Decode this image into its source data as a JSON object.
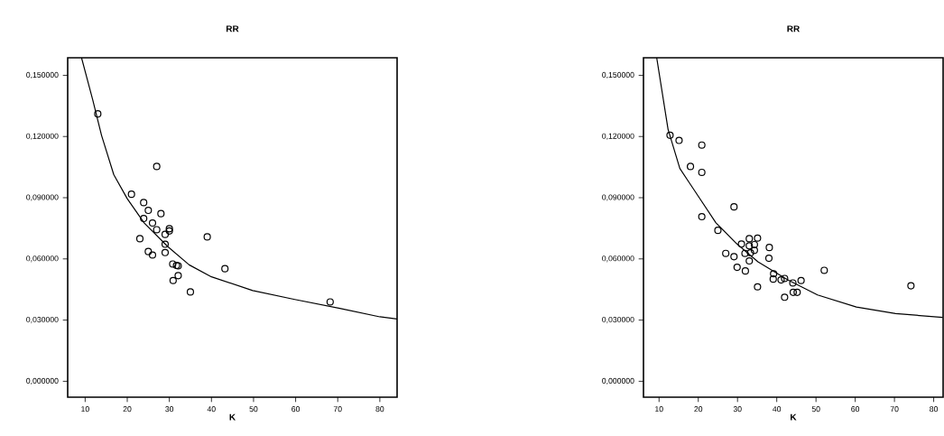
{
  "chart_data": [
    {
      "type": "scatter",
      "title": "RR",
      "xlabel": "K",
      "xlim": [
        5.85,
        84.1
      ],
      "ylim": [
        -0.0078,
        0.1586
      ],
      "xticks": [
        10,
        20,
        30,
        40,
        50,
        60,
        70,
        80
      ],
      "yticks": [
        {
          "value": 0,
          "label": "0,000000"
        },
        {
          "value": 0.03,
          "label": "0,030000"
        },
        {
          "value": 0.06,
          "label": "0,060000"
        },
        {
          "value": 0.09,
          "label": "0,090000"
        },
        {
          "value": 0.12,
          "label": "0,120000"
        },
        {
          "value": 0.15,
          "label": "0,150000"
        }
      ],
      "series": [
        {
          "type": "scatter",
          "color": "#000000",
          "marker": "circle",
          "x": [
            13.0,
            27.0,
            21.0,
            23.9,
            25.0,
            28.0,
            23.9,
            26.0,
            27.0,
            30.0,
            30.0,
            29.0,
            39.0,
            23.0,
            29.0,
            25.0,
            29.0,
            26.0,
            30.8,
            31.7,
            32.1,
            43.2,
            32.1,
            30.9,
            35.0,
            68.2
          ],
          "values": [
            0.1311,
            0.1053,
            0.0917,
            0.0876,
            0.0838,
            0.0822,
            0.0798,
            0.0776,
            0.0743,
            0.0748,
            0.0737,
            0.072,
            0.0708,
            0.0699,
            0.0672,
            0.0636,
            0.0631,
            0.0619,
            0.0575,
            0.0568,
            0.0566,
            0.0552,
            0.0518,
            0.0494,
            0.0438,
            0.0389
          ]
        },
        {
          "type": "line",
          "color": "#000000",
          "x": [
            9.14,
            11.8,
            13.9,
            16.8,
            20,
            24,
            29.7,
            34.7,
            40,
            49.8,
            59.8,
            70.5,
            80,
            84.1
          ],
          "values": [
            0.1586,
            0.138,
            0.1205,
            0.1013,
            0.0895,
            0.0777,
            0.0659,
            0.0571,
            0.0512,
            0.0445,
            0.0401,
            0.0357,
            0.0316,
            0.0305
          ]
        }
      ]
    },
    {
      "type": "scatter",
      "title": "RR",
      "xlabel": "K",
      "xlim": [
        6.03,
        82.4
      ],
      "ylim": [
        -0.0078,
        0.1586
      ],
      "xticks": [
        10,
        20,
        30,
        40,
        50,
        60,
        70,
        80
      ],
      "yticks": [
        {
          "value": 0,
          "label": "0,000000"
        },
        {
          "value": 0.03,
          "label": "0,030000"
        },
        {
          "value": 0.06,
          "label": "0,060000"
        },
        {
          "value": 0.09,
          "label": "0,090000"
        },
        {
          "value": 0.12,
          "label": "0,120000"
        },
        {
          "value": 0.15,
          "label": "0,150000"
        }
      ],
      "series": [
        {
          "type": "scatter",
          "color": "#000000",
          "marker": "circle",
          "x": [
            12.8,
            15.1,
            20.9,
            18.0,
            20.9,
            29.1,
            20.9,
            25.0,
            31.0,
            33.0,
            35.1,
            34.3,
            33.0,
            38.1,
            34.3,
            31.9,
            27.0,
            33.3,
            29.1,
            38.0,
            33.0,
            29.9,
            32.0,
            52.1,
            39.2,
            42.0,
            39.1,
            41.1,
            46.2,
            44.1,
            35.1,
            74.2,
            44.2,
            45.2,
            42.0
          ],
          "values": [
            0.1206,
            0.1181,
            0.1158,
            0.1053,
            0.1024,
            0.0855,
            0.0807,
            0.074,
            0.0673,
            0.0699,
            0.0702,
            0.067,
            0.0664,
            0.0656,
            0.0642,
            0.0627,
            0.0627,
            0.063,
            0.0611,
            0.0603,
            0.059,
            0.0559,
            0.0541,
            0.0544,
            0.0527,
            0.0504,
            0.0501,
            0.0497,
            0.0494,
            0.0482,
            0.0463,
            0.0468,
            0.0436,
            0.0436,
            0.0412
          ]
        },
        {
          "type": "line",
          "color": "#000000",
          "x": [
            9.4,
            12.3,
            15.3,
            19.9,
            24.5,
            29.8,
            35.2,
            42.8,
            50.4,
            60.3,
            70.3,
            82.3
          ],
          "values": [
            0.1586,
            0.1235,
            0.1043,
            0.091,
            0.0777,
            0.0674,
            0.0586,
            0.0497,
            0.0423,
            0.0364,
            0.0332,
            0.0313
          ]
        }
      ]
    }
  ]
}
